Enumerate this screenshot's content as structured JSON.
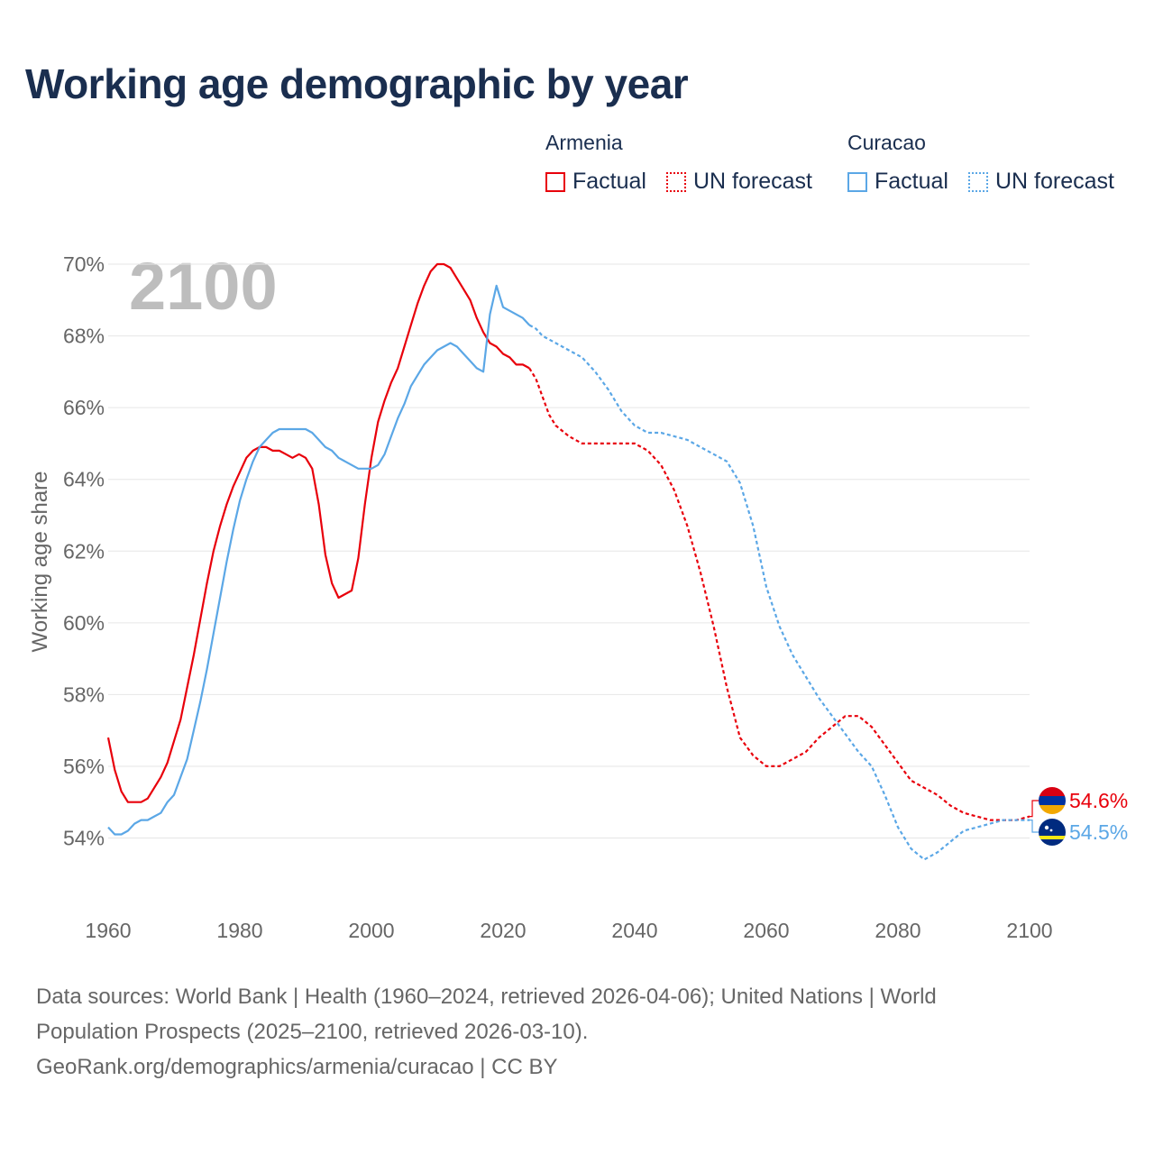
{
  "title": "Working age demographic by year",
  "legend": {
    "groups": [
      {
        "country": "Armenia",
        "factual_label": "Factual",
        "forecast_label": "UN forecast",
        "color": "#e8000b"
      },
      {
        "country": "Curacao",
        "factual_label": "Factual",
        "forecast_label": "UN forecast",
        "color": "#5ba7e6"
      }
    ]
  },
  "footer": {
    "line1": "Data sources: World Bank | Health (1960–2024, retrieved 2026-04-06); United Nations | World",
    "line2": "Population Prospects (2025–2100, retrieved 2026-03-10).",
    "line3": "GeoRank.org/demographics/armenia/curacao | CC BY"
  },
  "chart_data": {
    "type": "line",
    "title": "Working age demographic by year",
    "xlabel": "",
    "ylabel": "Working age share",
    "year_watermark": "2100",
    "xlim": [
      1960,
      2100
    ],
    "ylim": [
      53,
      70.5
    ],
    "x_ticks": [
      1960,
      1980,
      2000,
      2020,
      2040,
      2060,
      2080,
      2100
    ],
    "y_ticks": [
      {
        "value": 54,
        "label": "54%"
      },
      {
        "value": 56,
        "label": "56%"
      },
      {
        "value": 58,
        "label": "58%"
      },
      {
        "value": 60,
        "label": "60%"
      },
      {
        "value": 62,
        "label": "62%"
      },
      {
        "value": 64,
        "label": "64%"
      },
      {
        "value": 66,
        "label": "66%"
      },
      {
        "value": 68,
        "label": "68%"
      },
      {
        "value": 70,
        "label": "70%"
      }
    ],
    "grid": true,
    "series": [
      {
        "name": "Armenia",
        "color": "#e8000b",
        "end_label": "54.6%",
        "factual": {
          "x": [
            1960,
            1961,
            1962,
            1963,
            1964,
            1965,
            1966,
            1967,
            1968,
            1969,
            1970,
            1971,
            1972,
            1973,
            1974,
            1975,
            1976,
            1977,
            1978,
            1979,
            1980,
            1981,
            1982,
            1983,
            1984,
            1985,
            1986,
            1987,
            1988,
            1989,
            1990,
            1991,
            1992,
            1993,
            1994,
            1995,
            1996,
            1997,
            1998,
            1999,
            2000,
            2001,
            2002,
            2003,
            2004,
            2005,
            2006,
            2007,
            2008,
            2009,
            2010,
            2011,
            2012,
            2013,
            2014,
            2015,
            2016,
            2017,
            2018,
            2019,
            2020,
            2021,
            2022,
            2023,
            2024
          ],
          "y": [
            56.8,
            55.9,
            55.3,
            55.0,
            55.0,
            55.0,
            55.1,
            55.4,
            55.7,
            56.1,
            56.7,
            57.3,
            58.2,
            59.1,
            60.1,
            61.1,
            62.0,
            62.7,
            63.3,
            63.8,
            64.2,
            64.6,
            64.8,
            64.9,
            64.9,
            64.8,
            64.8,
            64.7,
            64.6,
            64.7,
            64.6,
            64.3,
            63.3,
            61.9,
            61.1,
            60.7,
            60.8,
            60.9,
            61.8,
            63.3,
            64.6,
            65.6,
            66.2,
            66.7,
            67.1,
            67.7,
            68.3,
            68.9,
            69.4,
            69.8,
            70.0,
            70.0,
            69.9,
            69.6,
            69.3,
            69.0,
            68.5,
            68.1,
            67.8,
            67.7,
            67.5,
            67.4,
            67.2,
            67.2,
            67.1
          ]
        },
        "forecast": {
          "x": [
            2024,
            2025,
            2026,
            2027,
            2028,
            2030,
            2032,
            2035,
            2038,
            2040,
            2042,
            2044,
            2046,
            2048,
            2050,
            2052,
            2054,
            2056,
            2058,
            2060,
            2062,
            2064,
            2066,
            2068,
            2070,
            2072,
            2074,
            2076,
            2078,
            2080,
            2082,
            2084,
            2086,
            2088,
            2090,
            2092,
            2094,
            2096,
            2098,
            2100
          ],
          "y": [
            67.1,
            66.8,
            66.3,
            65.8,
            65.5,
            65.2,
            65.0,
            65.0,
            65.0,
            65.0,
            64.8,
            64.4,
            63.7,
            62.7,
            61.4,
            59.9,
            58.2,
            56.8,
            56.3,
            56.0,
            56.0,
            56.2,
            56.4,
            56.8,
            57.1,
            57.4,
            57.4,
            57.1,
            56.6,
            56.1,
            55.6,
            55.4,
            55.2,
            54.9,
            54.7,
            54.6,
            54.5,
            54.5,
            54.5,
            54.6
          ]
        }
      },
      {
        "name": "Curacao",
        "color": "#5ba7e6",
        "end_label": "54.5%",
        "factual": {
          "x": [
            1960,
            1961,
            1962,
            1963,
            1964,
            1965,
            1966,
            1967,
            1968,
            1969,
            1970,
            1971,
            1972,
            1973,
            1974,
            1975,
            1976,
            1977,
            1978,
            1979,
            1980,
            1981,
            1982,
            1983,
            1984,
            1985,
            1986,
            1987,
            1988,
            1989,
            1990,
            1991,
            1992,
            1993,
            1994,
            1995,
            1996,
            1997,
            1998,
            1999,
            2000,
            2001,
            2002,
            2003,
            2004,
            2005,
            2006,
            2007,
            2008,
            2009,
            2010,
            2011,
            2012,
            2013,
            2014,
            2015,
            2016,
            2017,
            2018,
            2019,
            2020,
            2021,
            2022,
            2023,
            2024
          ],
          "y": [
            54.3,
            54.1,
            54.1,
            54.2,
            54.4,
            54.5,
            54.5,
            54.6,
            54.7,
            55.0,
            55.2,
            55.7,
            56.2,
            57.0,
            57.8,
            58.7,
            59.7,
            60.7,
            61.7,
            62.6,
            63.4,
            64.0,
            64.5,
            64.9,
            65.1,
            65.3,
            65.4,
            65.4,
            65.4,
            65.4,
            65.4,
            65.3,
            65.1,
            64.9,
            64.8,
            64.6,
            64.5,
            64.4,
            64.3,
            64.3,
            64.3,
            64.4,
            64.7,
            65.2,
            65.7,
            66.1,
            66.6,
            66.9,
            67.2,
            67.4,
            67.6,
            67.7,
            67.8,
            67.7,
            67.5,
            67.3,
            67.1,
            67.0,
            68.6,
            69.4,
            68.8,
            68.7,
            68.6,
            68.5,
            68.3
          ]
        },
        "forecast": {
          "x": [
            2024,
            2025,
            2026,
            2028,
            2030,
            2032,
            2034,
            2036,
            2038,
            2040,
            2042,
            2044,
            2046,
            2048,
            2050,
            2052,
            2054,
            2056,
            2058,
            2060,
            2062,
            2064,
            2066,
            2068,
            2070,
            2072,
            2074,
            2076,
            2078,
            2080,
            2082,
            2084,
            2086,
            2088,
            2090,
            2092,
            2094,
            2096,
            2098,
            2100
          ],
          "y": [
            68.3,
            68.2,
            68.0,
            67.8,
            67.6,
            67.4,
            67.0,
            66.5,
            65.9,
            65.5,
            65.3,
            65.3,
            65.2,
            65.1,
            64.9,
            64.7,
            64.5,
            63.9,
            62.7,
            61.0,
            59.9,
            59.1,
            58.5,
            57.9,
            57.4,
            56.9,
            56.4,
            56.0,
            55.2,
            54.3,
            53.7,
            53.4,
            53.6,
            53.9,
            54.2,
            54.3,
            54.4,
            54.5,
            54.5,
            54.5
          ]
        }
      }
    ]
  }
}
